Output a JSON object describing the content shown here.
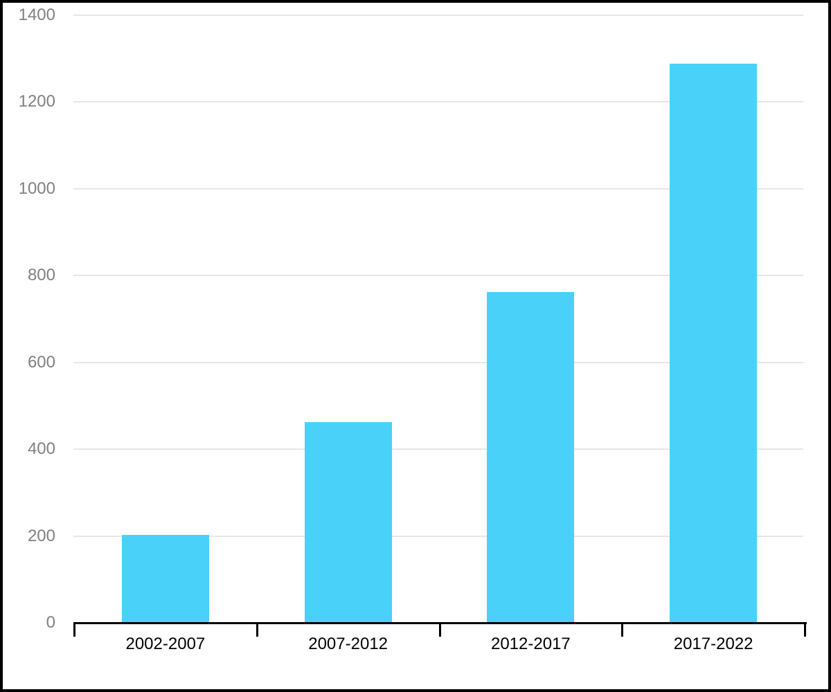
{
  "chart_data": {
    "type": "bar",
    "categories": [
      "2002-2007",
      "2007-2012",
      "2012-2017",
      "2017-2022"
    ],
    "values": [
      202,
      462,
      762,
      1289
    ],
    "yticks": [
      0,
      200,
      400,
      600,
      800,
      1000,
      1200,
      1400
    ],
    "ylim": [
      0,
      1400
    ],
    "grid": true,
    "legend": false,
    "bar_color": "#49d1fa",
    "gridline_color": "#e6e6e6",
    "axis_color": "#000000",
    "ytick_label_color": "#808080",
    "xtick_label_color": "#000000",
    "background_color": "#ffffff",
    "frame_border_color": "#000000"
  }
}
